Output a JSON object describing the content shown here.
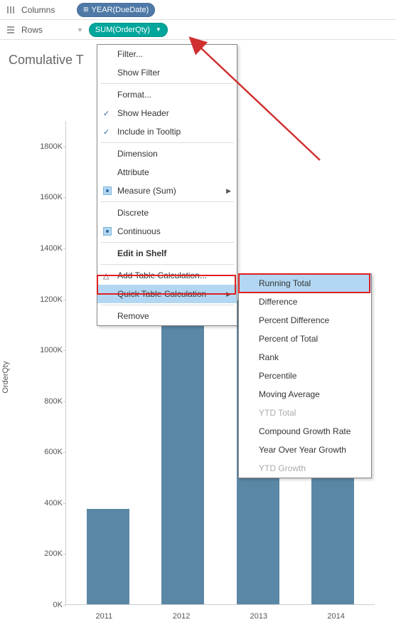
{
  "shelves": {
    "columns_label": "Columns",
    "rows_label": "Rows",
    "col_pill": "YEAR(DueDate)",
    "row_pill": "SUM(OrderQty)"
  },
  "title": "Comulative T",
  "chart": {
    "type": "bar",
    "ylabel": "OrderQty",
    "categories": [
      "2011",
      "2012",
      "2013",
      "2014"
    ],
    "values": [
      375000,
      1200000,
      1195000,
      935000
    ],
    "ymax": 1900000,
    "ytick_step": 200000,
    "yticks": [
      "0K",
      "200K",
      "400K",
      "600K",
      "800K",
      "1000K",
      "1200K",
      "1400K",
      "1600K",
      "1800K"
    ],
    "bar_color": "#5b87a6",
    "grid_color": "#cccccc",
    "background_color": "#ffffff"
  },
  "menu1": {
    "filter": "Filter...",
    "show_filter": "Show Filter",
    "format": "Format...",
    "show_header": "Show Header",
    "include_tooltip": "Include in Tooltip",
    "dimension": "Dimension",
    "attribute": "Attribute",
    "measure_sum": "Measure (Sum)",
    "discrete": "Discrete",
    "continuous": "Continuous",
    "edit_shelf": "Edit in Shelf",
    "add_table_calc": "Add Table Calculation...",
    "quick_table_calc": "Quick Table Calculation",
    "remove": "Remove"
  },
  "menu2": {
    "running_total": "Running Total",
    "difference": "Difference",
    "percent_diff": "Percent Difference",
    "percent_total": "Percent of Total",
    "rank": "Rank",
    "percentile": "Percentile",
    "moving_avg": "Moving Average",
    "ytd_total": "YTD Total",
    "compound_growth": "Compound Growth Rate",
    "yoy_growth": "Year Over Year Growth",
    "ytd_growth": "YTD Growth"
  },
  "colors": {
    "highlight": "#b3d7f2",
    "red": "#e02020",
    "arrow": "#d03030",
    "pill_green": "#00a69c",
    "pill_blue": "#4e79a7"
  }
}
